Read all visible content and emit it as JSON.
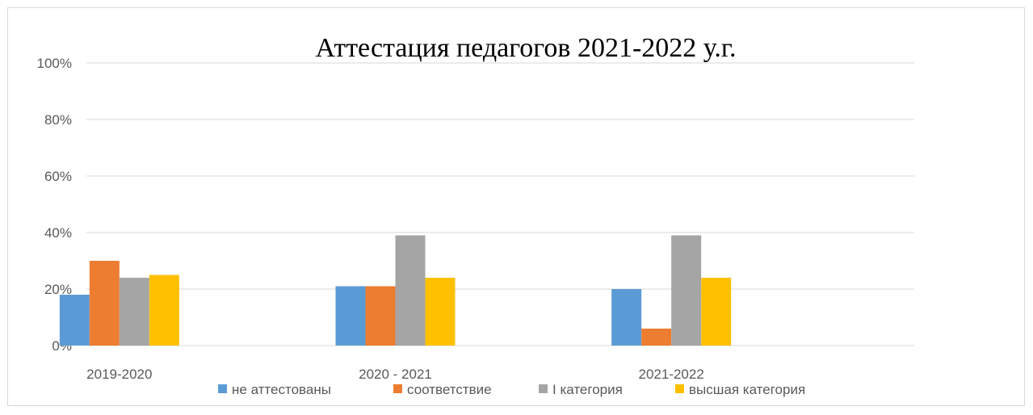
{
  "chart_data": {
    "type": "bar",
    "title": "Аттестация педагогов 2021-2022 у.г.",
    "categories": [
      "2019-2020",
      "2020 - 2021",
      "2021-2022"
    ],
    "series": [
      {
        "name": "не аттестованы",
        "color": "#5b9bd5",
        "values": [
          18,
          21,
          20
        ]
      },
      {
        "name": "соответствие",
        "color": "#ed7d31",
        "values": [
          30,
          21,
          6
        ]
      },
      {
        "name": "I категория",
        "color": "#a5a5a5",
        "values": [
          24,
          39,
          39
        ]
      },
      {
        "name": "высшая категория",
        "color": "#ffc000",
        "values": [
          25,
          24,
          24
        ]
      }
    ],
    "ylim": [
      0,
      100
    ],
    "yticks": [
      "0%",
      "20%",
      "40%",
      "60%",
      "80%",
      "100%"
    ],
    "ytick_values": [
      0,
      20,
      40,
      60,
      80,
      100
    ],
    "grid": true,
    "legend_position": "bottom"
  }
}
